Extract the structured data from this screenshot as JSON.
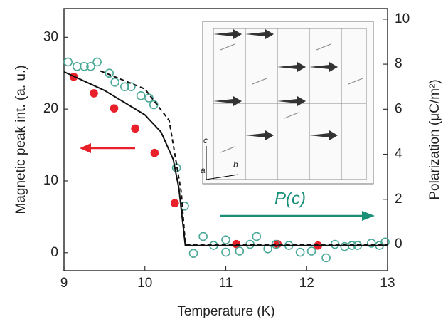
{
  "chart_data": {
    "type": "scatter",
    "xlabel": "Temperature (K)",
    "ylabel": "Magnetic peak int. (a. u.)",
    "y2label": "Polarization (μC/m²)",
    "xlim": [
      9,
      13
    ],
    "xticks": [
      9,
      10,
      11,
      12,
      13
    ],
    "ylim": [
      -2.5,
      34
    ],
    "yticks": [
      0,
      10,
      20,
      30
    ],
    "y2lim": [
      -1.17,
      10.47
    ],
    "y2ticks": [
      0,
      2,
      4,
      6,
      8,
      10
    ],
    "annotation": "P(c)",
    "annotation_color": "#1a8f78",
    "inset_labels": [
      "a",
      "b",
      "c"
    ],
    "series": [
      {
        "mode": "markers",
        "filled": true,
        "color": "#e8202a",
        "x": [
          9.12,
          9.37,
          9.62,
          9.88,
          10.12,
          10.37,
          11.13,
          11.64,
          12.14
        ],
        "values": [
          24.5,
          22.2,
          20.1,
          17.3,
          13.9,
          6.9,
          1.2,
          1.2,
          1.0
        ]
      },
      {
        "mode": "markers",
        "filled": false,
        "color": "#4aa896",
        "axis": "y2",
        "x": [
          9.05,
          9.16,
          9.25,
          9.33,
          9.41,
          9.56,
          9.63,
          9.75,
          9.83,
          9.95,
          10.05,
          10.11,
          10.39,
          10.49,
          10.6,
          10.72,
          10.85,
          11.0,
          11.0,
          11.17,
          11.3,
          11.38,
          11.52,
          11.62,
          11.78,
          11.92,
          12.06,
          12.24,
          12.35,
          12.47,
          12.56,
          12.63,
          12.8,
          12.9,
          12.97
        ],
        "values": [
          8.1,
          7.9,
          7.9,
          7.9,
          8.1,
          7.6,
          7.2,
          7.0,
          7.0,
          6.6,
          6.5,
          6.2,
          3.4,
          1.7,
          -0.4,
          0.35,
          -0.05,
          0.2,
          -0.35,
          -0.3,
          0,
          0.35,
          -0.2,
          0,
          -0.05,
          -0.35,
          -0.3,
          -0.6,
          0,
          -0.1,
          -0.05,
          -0.05,
          0.05,
          -0.05,
          0.1
        ]
      },
      {
        "mode": "line",
        "color": "#111",
        "x": [
          9,
          9.5,
          10,
          10.2,
          10.35,
          10.42,
          10.47,
          10.5,
          13
        ],
        "values": [
          25.2,
          22.6,
          19.2,
          16.8,
          13,
          9,
          4,
          1,
          1
        ]
      },
      {
        "mode": "line",
        "dash": true,
        "color": "#111",
        "axis": "y2",
        "x": [
          9.45,
          10,
          10.3,
          10.45,
          10.5,
          13
        ],
        "values": [
          7.7,
          6.9,
          5.5,
          2.3,
          0,
          0
        ]
      }
    ]
  }
}
